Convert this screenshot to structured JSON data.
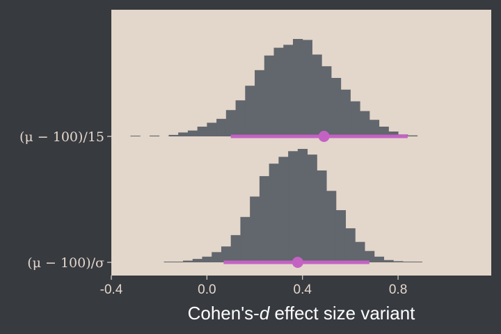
{
  "chart_data": {
    "type": "histogram",
    "xlabel": "Cohen's-d effect size variant",
    "xlabel_parts": [
      {
        "text": "Cohen's-",
        "italic": false
      },
      {
        "text": "d",
        "italic": true
      },
      {
        "text": " effect size variant",
        "italic": false
      }
    ],
    "xlim": [
      -0.4,
      1.19
    ],
    "xticks": [
      -0.4,
      0.0,
      0.4,
      0.8
    ],
    "xtick_labels": [
      "-0.4",
      "0.0",
      "0.4",
      "0.8"
    ],
    "bin_width": 0.04,
    "grid": false,
    "colors": {
      "background": "#373a3f",
      "panel": "#e3d6ca",
      "histogram": "#62666d",
      "interval": "#c462c4",
      "tick_text": "#e4d7cc",
      "title_text": "#ffffff"
    },
    "series": [
      {
        "name": "(μ − 100)/15",
        "bins_start": -0.32,
        "counts": [
          0.004,
          0.0,
          0.008,
          0.0,
          0.015,
          0.04,
          0.06,
          0.1,
          0.14,
          0.18,
          0.27,
          0.37,
          0.52,
          0.68,
          0.83,
          0.91,
          0.94,
          1.0,
          0.99,
          0.84,
          0.72,
          0.6,
          0.48,
          0.36,
          0.26,
          0.17,
          0.1,
          0.05,
          0.02,
          0.01
        ],
        "point": 0.49,
        "interval": [
          0.1,
          0.84
        ]
      },
      {
        "name": "(μ − 100)/σ",
        "bins_start": -0.18,
        "counts": [
          0.004,
          0.006,
          0.015,
          0.03,
          0.05,
          0.09,
          0.14,
          0.24,
          0.4,
          0.58,
          0.76,
          0.87,
          0.93,
          0.98,
          1.0,
          0.95,
          0.81,
          0.63,
          0.46,
          0.3,
          0.18,
          0.1,
          0.05,
          0.02,
          0.01,
          0.004,
          0.002
        ],
        "point": 0.38,
        "interval": [
          0.07,
          0.68
        ]
      }
    ]
  }
}
